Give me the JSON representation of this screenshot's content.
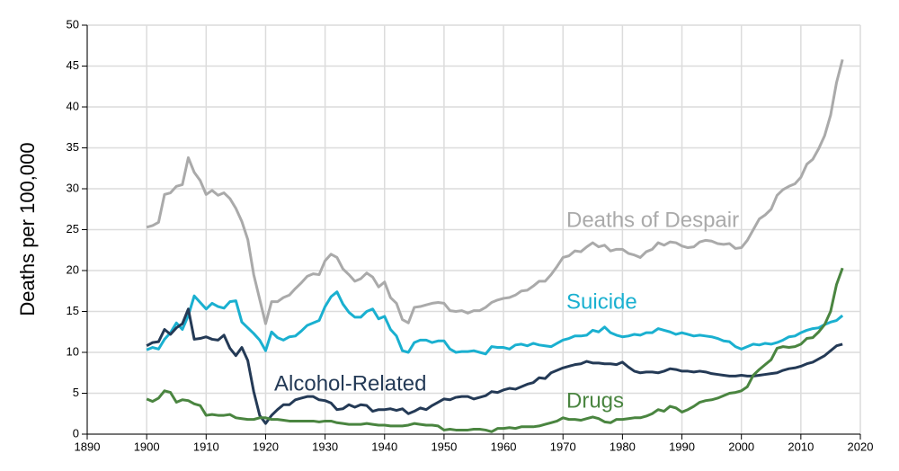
{
  "chart_data": {
    "type": "line",
    "y_label": "Deaths per 100,000",
    "xlim": [
      1890,
      2020
    ],
    "xticks": [
      1890,
      1900,
      1910,
      1920,
      1930,
      1940,
      1950,
      1960,
      1970,
      1980,
      1990,
      2000,
      2010,
      2020
    ],
    "ylim": [
      0,
      50
    ],
    "yticks": [
      0,
      5,
      10,
      15,
      20,
      25,
      30,
      35,
      40,
      45,
      50
    ],
    "grid": true,
    "x": [
      1900,
      1901,
      1902,
      1903,
      1904,
      1905,
      1906,
      1907,
      1908,
      1909,
      1910,
      1911,
      1912,
      1913,
      1914,
      1915,
      1916,
      1917,
      1918,
      1919,
      1920,
      1921,
      1922,
      1923,
      1924,
      1925,
      1926,
      1927,
      1928,
      1929,
      1930,
      1931,
      1932,
      1933,
      1934,
      1935,
      1936,
      1937,
      1938,
      1939,
      1940,
      1941,
      1942,
      1943,
      1944,
      1945,
      1946,
      1947,
      1948,
      1949,
      1950,
      1951,
      1952,
      1953,
      1954,
      1955,
      1956,
      1957,
      1958,
      1959,
      1960,
      1961,
      1962,
      1963,
      1964,
      1965,
      1966,
      1967,
      1968,
      1969,
      1970,
      1971,
      1972,
      1973,
      1974,
      1975,
      1976,
      1977,
      1978,
      1979,
      1980,
      1981,
      1982,
      1983,
      1984,
      1985,
      1986,
      1987,
      1988,
      1989,
      1990,
      1991,
      1992,
      1993,
      1994,
      1995,
      1996,
      1997,
      1998,
      1999,
      2000,
      2001,
      2002,
      2003,
      2004,
      2005,
      2006,
      2007,
      2008,
      2009,
      2010,
      2011,
      2012,
      2013,
      2014,
      2015,
      2016,
      2017
    ],
    "series": [
      {
        "name": "Deaths of Despair",
        "color": "#aaaaaa",
        "values": [
          25.3,
          25.5,
          25.9,
          29.3,
          29.5,
          30.3,
          30.5,
          33.8,
          32.0,
          31.0,
          29.3,
          29.8,
          29.2,
          29.5,
          28.8,
          27.6,
          26.0,
          23.8,
          19.5,
          16.5,
          13.5,
          16.2,
          16.2,
          16.7,
          17.0,
          17.8,
          18.5,
          19.3,
          19.6,
          19.5,
          21.2,
          22.0,
          21.6,
          20.2,
          19.5,
          18.7,
          19.0,
          19.7,
          19.2,
          18.0,
          18.6,
          16.7,
          16.0,
          14.0,
          13.6,
          15.5,
          15.6,
          15.8,
          16.0,
          16.1,
          16.0,
          15.1,
          15.0,
          15.1,
          14.8,
          15.1,
          15.1,
          15.5,
          16.1,
          16.4,
          16.6,
          16.7,
          17.0,
          17.5,
          17.6,
          18.1,
          18.7,
          18.7,
          19.5,
          20.5,
          21.6,
          21.8,
          22.4,
          22.3,
          22.9,
          23.4,
          22.9,
          23.1,
          22.4,
          22.6,
          22.6,
          22.1,
          21.9,
          21.6,
          22.3,
          22.6,
          23.4,
          23.1,
          23.5,
          23.4,
          23.0,
          22.8,
          22.9,
          23.5,
          23.7,
          23.6,
          23.3,
          23.2,
          23.3,
          22.7,
          22.8,
          23.7,
          25.0,
          26.3,
          26.8,
          27.5,
          29.2,
          29.9,
          30.3,
          30.6,
          31.4,
          33.0,
          33.6,
          34.9,
          36.5,
          39.0,
          43.0,
          45.8
        ]
      },
      {
        "name": "Suicide",
        "color": "#1ab0d0",
        "values": [
          10.3,
          10.6,
          10.4,
          11.6,
          12.4,
          13.6,
          12.8,
          14.5,
          16.9,
          16.1,
          15.3,
          16.0,
          15.6,
          15.4,
          16.2,
          16.3,
          13.7,
          13.0,
          12.3,
          11.5,
          10.2,
          12.5,
          11.8,
          11.5,
          11.9,
          12.0,
          12.6,
          13.3,
          13.6,
          13.9,
          15.6,
          16.8,
          17.4,
          15.9,
          14.9,
          14.3,
          14.3,
          15.0,
          15.3,
          14.1,
          14.4,
          12.8,
          12.0,
          10.2,
          10.0,
          11.2,
          11.5,
          11.5,
          11.2,
          11.4,
          11.4,
          10.4,
          10.0,
          10.1,
          10.1,
          10.2,
          10.0,
          9.8,
          10.7,
          10.6,
          10.6,
          10.4,
          10.9,
          11.0,
          10.8,
          11.1,
          10.9,
          10.8,
          10.7,
          11.1,
          11.5,
          11.7,
          12.0,
          12.0,
          12.1,
          12.7,
          12.5,
          13.1,
          12.4,
          12.1,
          11.9,
          12.0,
          12.2,
          12.1,
          12.4,
          12.4,
          12.9,
          12.7,
          12.5,
          12.2,
          12.4,
          12.2,
          12.0,
          12.1,
          12.0,
          11.9,
          11.7,
          11.4,
          11.3,
          10.7,
          10.4,
          10.7,
          11.0,
          10.9,
          11.1,
          11.0,
          11.2,
          11.5,
          11.9,
          12.0,
          12.4,
          12.7,
          12.9,
          13.0,
          13.4,
          13.7,
          13.9,
          14.5
        ]
      },
      {
        "name": "Alcohol-Related",
        "color": "#243a56",
        "values": [
          10.8,
          11.2,
          11.3,
          12.8,
          12.2,
          13.0,
          13.5,
          15.3,
          11.6,
          11.7,
          11.9,
          11.6,
          11.5,
          12.1,
          10.5,
          9.6,
          10.6,
          9.0,
          5.2,
          2.3,
          1.3,
          2.3,
          3.0,
          3.6,
          3.6,
          4.2,
          4.4,
          4.6,
          4.6,
          4.2,
          4.1,
          3.8,
          3.0,
          3.1,
          3.6,
          3.3,
          3.6,
          3.5,
          2.8,
          3.0,
          3.0,
          3.1,
          2.9,
          3.1,
          2.5,
          2.8,
          3.2,
          3.0,
          3.5,
          3.9,
          4.3,
          4.2,
          4.5,
          4.6,
          4.6,
          4.3,
          4.5,
          4.7,
          5.2,
          5.1,
          5.4,
          5.6,
          5.5,
          5.8,
          6.1,
          6.3,
          6.9,
          6.8,
          7.5,
          7.8,
          8.1,
          8.3,
          8.5,
          8.6,
          8.9,
          8.7,
          8.7,
          8.6,
          8.6,
          8.5,
          8.8,
          8.2,
          7.7,
          7.5,
          7.6,
          7.6,
          7.5,
          7.7,
          8.0,
          7.9,
          7.7,
          7.7,
          7.6,
          7.7,
          7.6,
          7.4,
          7.3,
          7.2,
          7.1,
          7.1,
          7.2,
          7.1,
          7.1,
          7.2,
          7.3,
          7.4,
          7.5,
          7.8,
          8.0,
          8.1,
          8.3,
          8.6,
          8.8,
          9.2,
          9.6,
          10.2,
          10.8,
          11.0
        ]
      },
      {
        "name": "Drugs",
        "color": "#4a8540",
        "values": [
          4.3,
          4.0,
          4.4,
          5.3,
          5.1,
          3.9,
          4.2,
          4.1,
          3.7,
          3.5,
          2.3,
          2.4,
          2.3,
          2.3,
          2.4,
          2.0,
          1.9,
          1.8,
          1.8,
          2.0,
          2.0,
          1.8,
          1.8,
          1.7,
          1.6,
          1.6,
          1.6,
          1.6,
          1.6,
          1.5,
          1.6,
          1.6,
          1.4,
          1.3,
          1.2,
          1.2,
          1.2,
          1.3,
          1.2,
          1.1,
          1.1,
          1.0,
          1.0,
          1.0,
          1.1,
          1.3,
          1.2,
          1.1,
          1.1,
          1.0,
          0.5,
          0.6,
          0.5,
          0.5,
          0.5,
          0.6,
          0.6,
          0.5,
          0.3,
          0.7,
          0.7,
          0.8,
          0.7,
          0.9,
          0.9,
          0.9,
          1.0,
          1.2,
          1.4,
          1.6,
          2.0,
          1.8,
          1.8,
          1.7,
          1.9,
          2.1,
          1.9,
          1.5,
          1.4,
          1.8,
          1.8,
          1.9,
          2.0,
          2.0,
          2.2,
          2.5,
          3.0,
          2.8,
          3.4,
          3.2,
          2.7,
          3.0,
          3.4,
          3.9,
          4.1,
          4.2,
          4.4,
          4.7,
          5.0,
          5.1,
          5.3,
          5.8,
          7.2,
          7.9,
          8.5,
          9.1,
          10.5,
          10.7,
          10.6,
          10.7,
          11.0,
          11.7,
          11.8,
          12.5,
          13.4,
          15.0,
          18.3,
          20.3
        ]
      }
    ]
  }
}
